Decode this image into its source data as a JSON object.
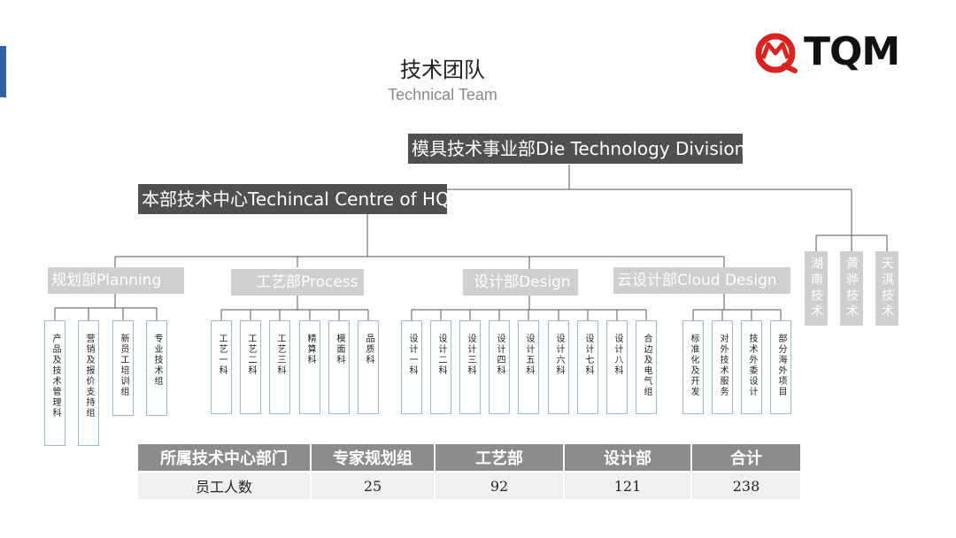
{
  "header": {
    "title": "技术团队",
    "subtitle": "Technical Team",
    "logo_text": "TQM"
  },
  "org": {
    "division": "模具技术事业部Die Technology Division",
    "centre": "本部技术中心Techincal Centre of HQ",
    "departments": [
      {
        "label": "规划部Planning",
        "units": [
          "产品及技术管理科",
          "营销及报价支持组",
          "新员工培训组",
          "专业技术组"
        ]
      },
      {
        "label": "工艺部Process",
        "units": [
          "工艺一科",
          "工艺二科",
          "工艺三科",
          "精算科",
          "模面科",
          "品质科"
        ]
      },
      {
        "label": "设计部Design",
        "units": [
          "设计一科",
          "设计二科",
          "设计三科",
          "设计四科",
          "设计五科",
          "设计六科",
          "设计七科",
          "设计八科",
          "合边及电气组"
        ]
      },
      {
        "label": "云设计部Cloud Design",
        "units": [
          "标准化及开发",
          "对外技术服务",
          "技术外委设计",
          "部分海外项目"
        ]
      }
    ],
    "branches": [
      "湖南技术",
      "黄骅技术",
      "天淇技术"
    ]
  },
  "table": {
    "headers": [
      "所属技术中心部门",
      "专家规划组",
      "工艺部",
      "设计部",
      "合计"
    ],
    "row": [
      "员工人数",
      "25",
      "92",
      "121",
      "238"
    ]
  },
  "colors": {
    "dark_box": "#505050",
    "gray_box": "#cfcfcf",
    "accent": "#2f63a6",
    "logo_red": "#d8231f"
  }
}
